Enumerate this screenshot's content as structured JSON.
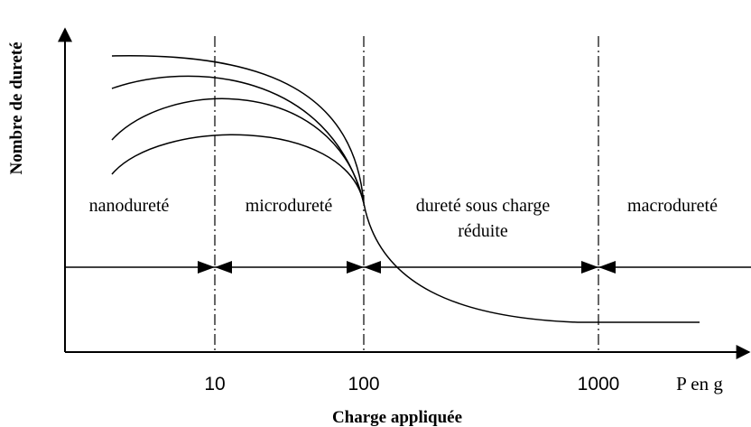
{
  "axes": {
    "y_label": "Nombre de dureté",
    "x_label": "Charge appliquée",
    "x_unit": "P en g",
    "ticks": [
      "10",
      "100",
      "1000"
    ]
  },
  "regions": [
    {
      "lines": [
        "nanodureté"
      ]
    },
    {
      "lines": [
        "microdureté"
      ]
    },
    {
      "lines": [
        "dureté sous charge",
        "réduite"
      ]
    },
    {
      "lines": [
        "macrodureté"
      ]
    }
  ]
}
